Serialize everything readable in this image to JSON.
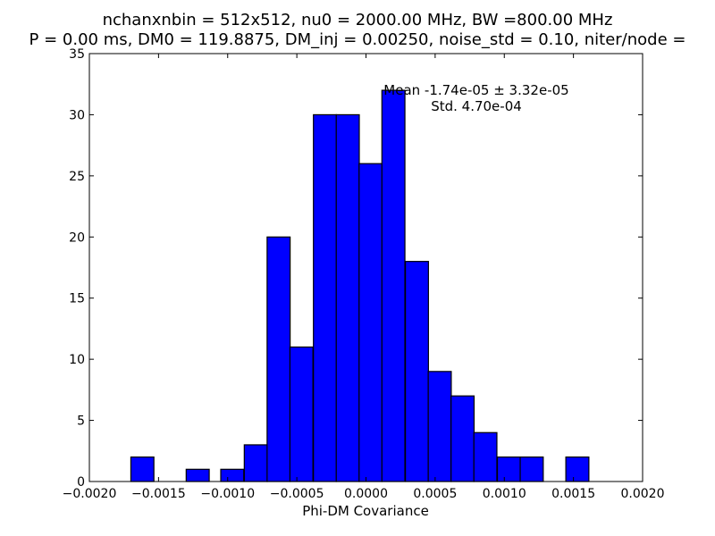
{
  "chart_data": {
    "type": "bar",
    "title_lines": [
      "nchanxnbin = 512x512, nu0 = 2000.00 MHz, BW =800.00 MHz",
      "P = 0.00 ms, DM0 = 119.8875, DM_inj = 0.00250, noise_std = 0.10, niter/node ="
    ],
    "xlabel": "Phi-DM Covariance",
    "ylabel": "",
    "xlim": [
      -0.002,
      0.002
    ],
    "ylim": [
      0,
      35
    ],
    "bin_width": 0.0001665,
    "bins": [
      {
        "x": -0.0017,
        "value": 2
      },
      {
        "x": -0.0013,
        "value": 1
      },
      {
        "x": -0.00105,
        "value": 1
      },
      {
        "x": -0.00088,
        "value": 3
      },
      {
        "x": -0.000715,
        "value": 20
      },
      {
        "x": -0.00055,
        "value": 11
      },
      {
        "x": -0.00038,
        "value": 30
      },
      {
        "x": -0.000215,
        "value": 30
      },
      {
        "x": -5e-05,
        "value": 26
      },
      {
        "x": 0.000115,
        "value": 32
      },
      {
        "x": 0.000285,
        "value": 18
      },
      {
        "x": 0.00045,
        "value": 9
      },
      {
        "x": 0.000615,
        "value": 7
      },
      {
        "x": 0.00078,
        "value": 4
      },
      {
        "x": 0.00095,
        "value": 2
      },
      {
        "x": 0.001115,
        "value": 2
      },
      {
        "x": 0.001445,
        "value": 2
      }
    ],
    "x_ticks": [
      {
        "value": -0.002,
        "label": "−0.0020"
      },
      {
        "value": -0.0015,
        "label": "−0.0015"
      },
      {
        "value": -0.001,
        "label": "−0.0010"
      },
      {
        "value": -0.0005,
        "label": "−0.0005"
      },
      {
        "value": 0,
        "label": "0.0000"
      },
      {
        "value": 0.0005,
        "label": "0.0005"
      },
      {
        "value": 0.001,
        "label": "0.0010"
      },
      {
        "value": 0.0015,
        "label": "0.0015"
      },
      {
        "value": 0.002,
        "label": "0.0020"
      }
    ],
    "y_ticks": [
      {
        "value": 0,
        "label": "0"
      },
      {
        "value": 5,
        "label": "5"
      },
      {
        "value": 10,
        "label": "10"
      },
      {
        "value": 15,
        "label": "15"
      },
      {
        "value": 20,
        "label": "20"
      },
      {
        "value": 25,
        "label": "25"
      },
      {
        "value": 30,
        "label": "30"
      },
      {
        "value": 35,
        "label": "35"
      }
    ],
    "annotations": [
      "Mean -1.74e-05 ± 3.32e-05",
      "Std. 4.70e-04"
    ],
    "bar_color": "#0000ff",
    "edge_color": "#000000",
    "grid": false,
    "legend": "none"
  }
}
